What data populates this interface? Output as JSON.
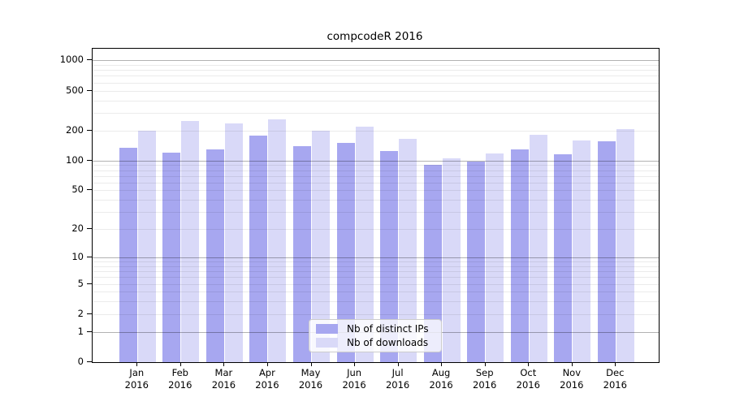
{
  "chart_data": {
    "type": "bar",
    "title": "compcodeR 2016",
    "categories": [
      "Jan",
      "Feb",
      "Mar",
      "Apr",
      "May",
      "Jun",
      "Jul",
      "Aug",
      "Sep",
      "Oct",
      "Nov",
      "Dec"
    ],
    "year_label": "2016",
    "series": [
      {
        "name": "Nb of distinct IPs",
        "color": "#a7a7f0",
        "values": [
          135,
          120,
          130,
          178,
          140,
          150,
          125,
          91,
          97,
          130,
          115,
          155
        ]
      },
      {
        "name": "Nb of downloads",
        "color": "#d9d9f8",
        "values": [
          200,
          250,
          235,
          260,
          200,
          218,
          165,
          106,
          118,
          180,
          158,
          208
        ]
      }
    ],
    "y_ticks": [
      1000,
      500,
      200,
      100,
      50,
      20,
      10,
      5,
      2,
      1,
      0
    ],
    "y_scale": "log10(1+y)",
    "y_major_gridlines": [
      1,
      10,
      100,
      1000
    ],
    "ylim": [
      0,
      1400
    ],
    "grid": "on",
    "legend_position": "lower center"
  },
  "colors": {
    "background": "#ffffff",
    "axis": "#000000",
    "major_grid": "#b3b3b3",
    "minor_grid": "#e8e8e8"
  }
}
